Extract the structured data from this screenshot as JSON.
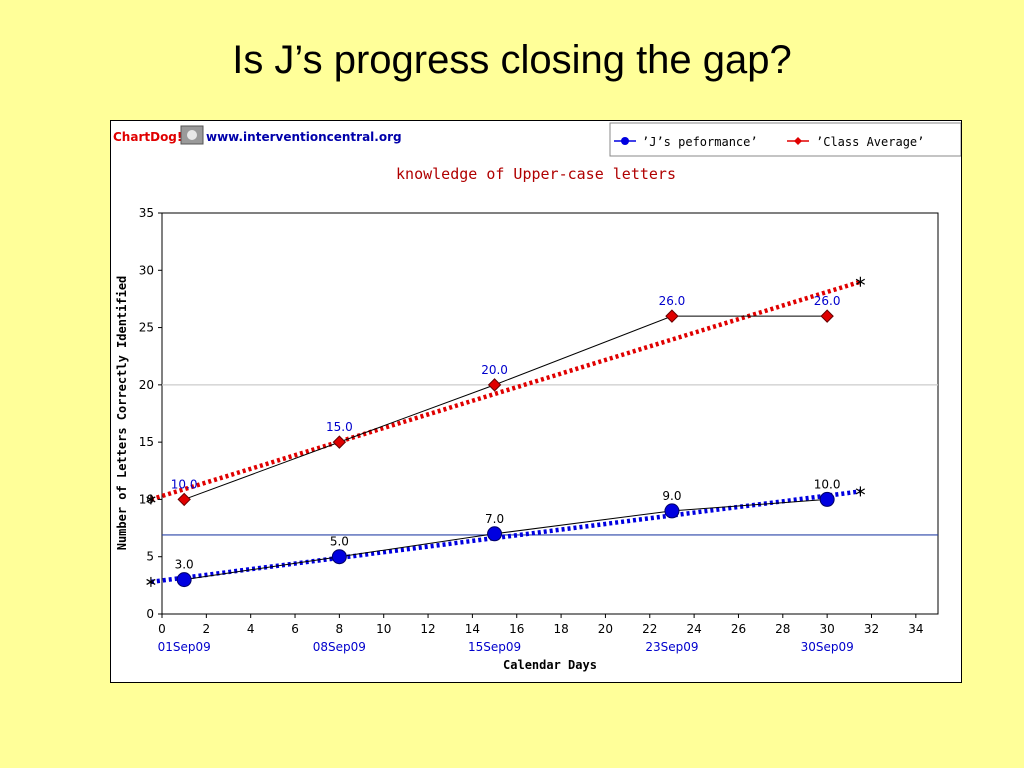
{
  "slide": {
    "title": "Is J’s progress closing the gap?"
  },
  "brand": {
    "name": "ChartDog!",
    "url": "www.interventioncentral.org"
  },
  "colors": {
    "slide_bg": "#FFFF99",
    "j_series": "#0000E0",
    "class_series": "#E00000",
    "title_red": "#B00000",
    "label_blue": "#0000CC",
    "baseline": "#2A44A8"
  },
  "chart_data": {
    "type": "line",
    "title": "knowledge of Upper-case letters",
    "xlabel": "Calendar Days",
    "ylabel": "Number of Letters Correctly Identified",
    "xlim": [
      0,
      35
    ],
    "ylim": [
      0,
      35
    ],
    "xticks": [
      0,
      2,
      4,
      6,
      8,
      10,
      12,
      14,
      16,
      18,
      20,
      22,
      24,
      26,
      28,
      30,
      32,
      34
    ],
    "yticks": [
      0,
      5,
      10,
      15,
      20,
      25,
      30,
      35
    ],
    "date_labels": [
      {
        "x": 1,
        "label": "01Sep09"
      },
      {
        "x": 8,
        "label": "08Sep09"
      },
      {
        "x": 15,
        "label": "15Sep09"
      },
      {
        "x": 23,
        "label": "23Sep09"
      },
      {
        "x": 30,
        "label": "30Sep09"
      }
    ],
    "legend_position": "top-right",
    "series": [
      {
        "name": "’J’s peformance’",
        "color": "#0000E0",
        "marker": "circle",
        "x": [
          1,
          8,
          15,
          23,
          30
        ],
        "y": [
          3,
          5,
          7,
          9,
          10
        ],
        "labels": [
          "3.0",
          "5.0",
          "7.0",
          "9.0",
          "10.0"
        ],
        "trend": {
          "x": [
            -0.5,
            31.5
          ],
          "y": [
            2.8,
            10.7
          ]
        }
      },
      {
        "name": "’Class Average’",
        "color": "#E00000",
        "marker": "diamond",
        "x": [
          1,
          8,
          15,
          23,
          30
        ],
        "y": [
          10,
          15,
          20,
          26,
          26
        ],
        "labels": [
          "10.0",
          "15.0",
          "20.0",
          "26.0",
          "26.0"
        ],
        "trend": {
          "x": [
            -0.5,
            31.5
          ],
          "y": [
            10.0,
            29.0
          ]
        }
      }
    ],
    "reference_lines": [
      {
        "y": 20,
        "color": "#CCCCCC"
      },
      {
        "y": 6.9,
        "color": "#2A44A8"
      }
    ]
  }
}
